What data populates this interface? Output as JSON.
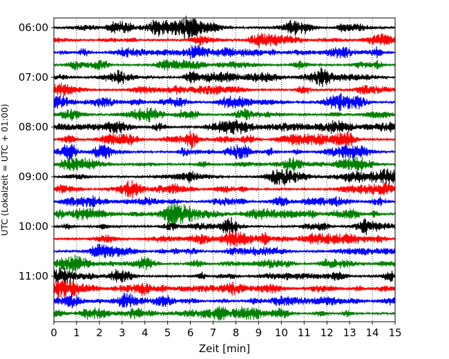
{
  "chart_data": {
    "type": "line",
    "title": "",
    "xlabel": "Zeit  [min]",
    "ylabel": "UTC (Lokalzeit = UTC + 01:00)",
    "xlim": [
      0,
      15
    ],
    "x_ticks": [
      "0",
      "1",
      "2",
      "3",
      "4",
      "5",
      "6",
      "7",
      "8",
      "9",
      "10",
      "11",
      "12",
      "13",
      "14",
      "15"
    ],
    "y_ticks": [
      "06:00",
      "07:00",
      "08:00",
      "09:00",
      "10:00",
      "11:00"
    ],
    "grid": "vertical dotted",
    "trace_interval_min": 15,
    "traces": [
      {
        "start": "06:00",
        "color": "#000000"
      },
      {
        "start": "06:15",
        "color": "#ff0000"
      },
      {
        "start": "06:30",
        "color": "#0000ff"
      },
      {
        "start": "06:45",
        "color": "#008000"
      },
      {
        "start": "07:00",
        "color": "#000000"
      },
      {
        "start": "07:15",
        "color": "#ff0000"
      },
      {
        "start": "07:30",
        "color": "#0000ff"
      },
      {
        "start": "07:45",
        "color": "#008000"
      },
      {
        "start": "08:00",
        "color": "#000000"
      },
      {
        "start": "08:15",
        "color": "#ff0000"
      },
      {
        "start": "08:30",
        "color": "#0000ff"
      },
      {
        "start": "08:45",
        "color": "#008000"
      },
      {
        "start": "09:00",
        "color": "#000000"
      },
      {
        "start": "09:15",
        "color": "#ff0000"
      },
      {
        "start": "09:30",
        "color": "#0000ff"
      },
      {
        "start": "09:45",
        "color": "#008000"
      },
      {
        "start": "10:00",
        "color": "#000000"
      },
      {
        "start": "10:15",
        "color": "#ff0000"
      },
      {
        "start": "10:30",
        "color": "#0000ff"
      },
      {
        "start": "10:45",
        "color": "#008000"
      },
      {
        "start": "11:00",
        "color": "#000000"
      },
      {
        "start": "11:15",
        "color": "#ff0000"
      },
      {
        "start": "11:30",
        "color": "#0000ff"
      },
      {
        "start": "11:45",
        "color": "#008000"
      }
    ]
  }
}
